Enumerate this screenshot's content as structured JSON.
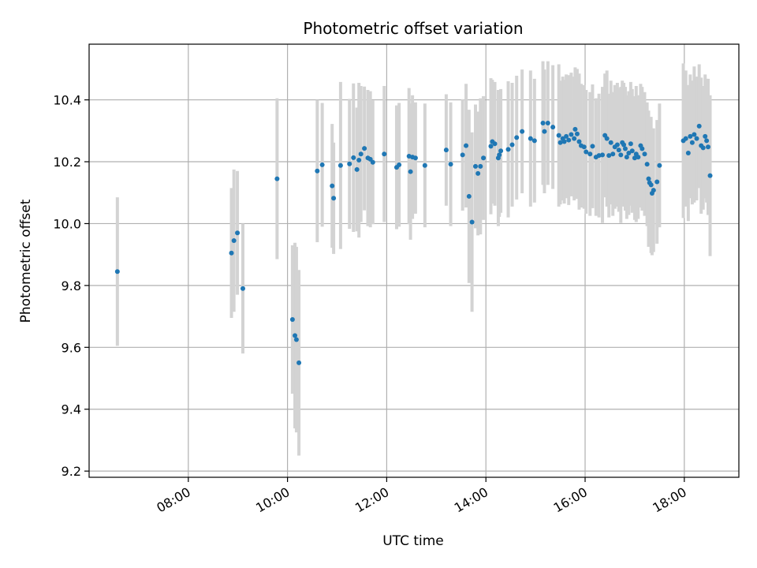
{
  "chart_data": {
    "type": "scatter",
    "title": "Photometric offset variation",
    "xlabel": "UTC time",
    "ylabel": "Photometric offset",
    "x_unit": "hours UTC",
    "xlim": [
      6.0,
      19.1
    ],
    "ylim": [
      9.18,
      10.58
    ],
    "x_ticks": [
      8,
      10,
      12,
      14,
      16,
      18
    ],
    "x_tick_labels": [
      "08:00",
      "10:00",
      "12:00",
      "14:00",
      "16:00",
      "18:00"
    ],
    "y_ticks": [
      9.2,
      9.4,
      9.6,
      9.8,
      10.0,
      10.2,
      10.4
    ],
    "y_tick_labels": [
      "9.2",
      "9.4",
      "9.6",
      "9.8",
      "10.0",
      "10.2",
      "10.4"
    ],
    "grid": true,
    "point_color": "#1f77b4",
    "errorbar_color": "#d3d3d3",
    "points": [
      [
        6.57,
        9.845,
        0.24
      ],
      [
        8.87,
        9.905,
        0.21
      ],
      [
        8.92,
        9.945,
        0.23
      ],
      [
        8.99,
        9.97,
        0.2
      ],
      [
        9.1,
        9.79,
        0.21
      ],
      [
        9.79,
        10.145,
        0.26
      ],
      [
        10.1,
        9.69,
        0.24
      ],
      [
        10.15,
        9.638,
        0.3
      ],
      [
        10.18,
        9.625,
        0.3
      ],
      [
        10.23,
        9.55,
        0.3
      ],
      [
        10.6,
        10.17,
        0.23
      ],
      [
        10.7,
        10.19,
        0.2
      ],
      [
        10.9,
        10.122,
        0.2
      ],
      [
        10.93,
        10.082,
        0.18
      ],
      [
        11.07,
        10.188,
        0.27
      ],
      [
        11.25,
        10.193,
        0.21
      ],
      [
        11.33,
        10.213,
        0.24
      ],
      [
        11.4,
        10.175,
        0.2
      ],
      [
        11.44,
        10.205,
        0.25
      ],
      [
        11.48,
        10.225,
        0.22
      ],
      [
        11.55,
        10.243,
        0.2
      ],
      [
        11.62,
        10.212,
        0.22
      ],
      [
        11.67,
        10.208,
        0.22
      ],
      [
        11.72,
        10.198,
        0.2
      ],
      [
        11.95,
        10.225,
        0.22
      ],
      [
        12.2,
        10.182,
        0.2
      ],
      [
        12.25,
        10.19,
        0.2
      ],
      [
        12.45,
        10.218,
        0.22
      ],
      [
        12.48,
        10.168,
        0.22
      ],
      [
        12.52,
        10.215,
        0.2
      ],
      [
        12.58,
        10.212,
        0.18
      ],
      [
        12.77,
        10.188,
        0.2
      ],
      [
        13.2,
        10.238,
        0.18
      ],
      [
        13.29,
        10.192,
        0.2
      ],
      [
        13.53,
        10.222,
        0.18
      ],
      [
        13.6,
        10.252,
        0.2
      ],
      [
        13.66,
        10.088,
        0.28
      ],
      [
        13.72,
        10.005,
        0.29
      ],
      [
        13.79,
        10.185,
        0.2
      ],
      [
        13.84,
        10.162,
        0.2
      ],
      [
        13.89,
        10.185,
        0.22
      ],
      [
        13.95,
        10.212,
        0.2
      ],
      [
        14.1,
        10.25,
        0.22
      ],
      [
        14.13,
        10.265,
        0.2
      ],
      [
        14.18,
        10.258,
        0.2
      ],
      [
        14.25,
        10.212,
        0.22
      ],
      [
        14.27,
        10.222,
        0.2
      ],
      [
        14.3,
        10.235,
        0.2
      ],
      [
        14.45,
        10.24,
        0.22
      ],
      [
        14.53,
        10.255,
        0.2
      ],
      [
        14.62,
        10.278,
        0.2
      ],
      [
        14.73,
        10.298,
        0.2
      ],
      [
        14.9,
        10.275,
        0.22
      ],
      [
        14.98,
        10.268,
        0.2
      ],
      [
        15.15,
        10.325,
        0.2
      ],
      [
        15.18,
        10.298,
        0.2
      ],
      [
        15.25,
        10.325,
        0.2
      ],
      [
        15.35,
        10.312,
        0.2
      ],
      [
        15.47,
        10.285,
        0.23
      ],
      [
        15.5,
        10.262,
        0.2
      ],
      [
        15.55,
        10.275,
        0.2
      ],
      [
        15.58,
        10.265,
        0.2
      ],
      [
        15.62,
        10.282,
        0.2
      ],
      [
        15.67,
        10.27,
        0.21
      ],
      [
        15.72,
        10.288,
        0.2
      ],
      [
        15.78,
        10.275,
        0.2
      ],
      [
        15.8,
        10.305,
        0.2
      ],
      [
        15.84,
        10.29,
        0.21
      ],
      [
        15.88,
        10.265,
        0.22
      ],
      [
        15.92,
        10.252,
        0.2
      ],
      [
        15.98,
        10.248,
        0.2
      ],
      [
        16.02,
        10.232,
        0.2
      ],
      [
        16.1,
        10.225,
        0.2
      ],
      [
        16.15,
        10.25,
        0.2
      ],
      [
        16.22,
        10.215,
        0.19
      ],
      [
        16.28,
        10.22,
        0.2
      ],
      [
        16.35,
        10.222,
        0.22
      ],
      [
        16.4,
        10.285,
        0.2
      ],
      [
        16.44,
        10.275,
        0.22
      ],
      [
        16.48,
        10.22,
        0.2
      ],
      [
        16.52,
        10.262,
        0.2
      ],
      [
        16.56,
        10.225,
        0.2
      ],
      [
        16.6,
        10.248,
        0.2
      ],
      [
        16.65,
        10.255,
        0.2
      ],
      [
        16.68,
        10.238,
        0.2
      ],
      [
        16.72,
        10.222,
        0.22
      ],
      [
        16.75,
        10.262,
        0.2
      ],
      [
        16.78,
        10.255,
        0.2
      ],
      [
        16.81,
        10.242,
        0.2
      ],
      [
        16.84,
        10.215,
        0.2
      ],
      [
        16.88,
        10.228,
        0.2
      ],
      [
        16.92,
        10.258,
        0.2
      ],
      [
        16.95,
        10.235,
        0.2
      ],
      [
        17.0,
        10.212,
        0.2
      ],
      [
        17.03,
        10.225,
        0.22
      ],
      [
        17.07,
        10.215,
        0.2
      ],
      [
        17.12,
        10.252,
        0.2
      ],
      [
        17.15,
        10.242,
        0.2
      ],
      [
        17.2,
        10.225,
        0.2
      ],
      [
        17.25,
        10.192,
        0.2
      ],
      [
        17.28,
        10.145,
        0.22
      ],
      [
        17.3,
        10.132,
        0.2
      ],
      [
        17.33,
        10.125,
        0.22
      ],
      [
        17.35,
        10.098,
        0.2
      ],
      [
        17.38,
        10.108,
        0.2
      ],
      [
        17.45,
        10.135,
        0.2
      ],
      [
        17.5,
        10.188,
        0.2
      ],
      [
        17.98,
        10.268,
        0.25
      ],
      [
        18.03,
        10.275,
        0.22
      ],
      [
        18.08,
        10.228,
        0.22
      ],
      [
        18.12,
        10.282,
        0.2
      ],
      [
        18.16,
        10.262,
        0.2
      ],
      [
        18.2,
        10.288,
        0.22
      ],
      [
        18.25,
        10.275,
        0.2
      ],
      [
        18.3,
        10.315,
        0.2
      ],
      [
        18.34,
        10.252,
        0.22
      ],
      [
        18.38,
        10.245,
        0.2
      ],
      [
        18.42,
        10.282,
        0.2
      ],
      [
        18.45,
        10.268,
        0.2
      ],
      [
        18.48,
        10.248,
        0.22
      ],
      [
        18.52,
        10.155,
        0.26
      ]
    ]
  }
}
